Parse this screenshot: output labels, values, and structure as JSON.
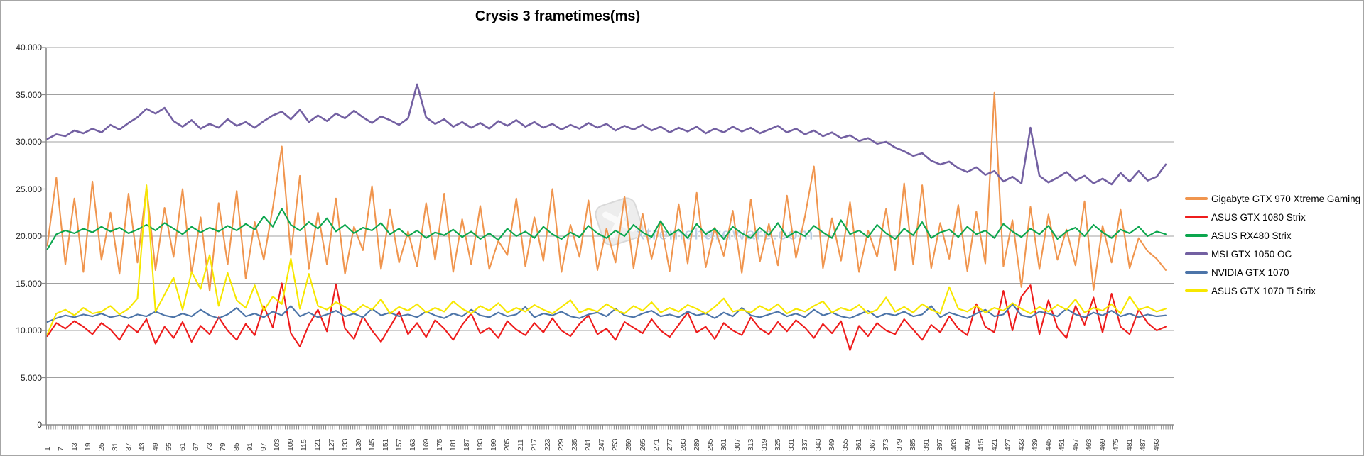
{
  "chart_title": "Crysis 3 frametimes(ms)",
  "watermark": {
    "text": "xtremehardware.com",
    "logo": "excel-x-logo"
  },
  "colors": {
    "background": "#ffffff",
    "frame_border": "#a6a6a6",
    "gridline": "#a0a0a0",
    "axis": "#8a8a8a",
    "tick_label": "#404040",
    "watermark_text": "#b2c8e2",
    "watermark_logo_fill": "#ededed",
    "watermark_logo_stroke": "#d9d9d9"
  },
  "axes": {
    "y_ticks": [
      {
        "label": "0",
        "value": 0
      },
      {
        "label": "5.000",
        "value": 5
      },
      {
        "label": "10.000",
        "value": 10
      },
      {
        "label": "15.000",
        "value": 15
      },
      {
        "label": "20.000",
        "value": 20
      },
      {
        "label": "25.000",
        "value": 25
      },
      {
        "label": "30.000",
        "value": 30
      },
      {
        "label": "35.000",
        "value": 35
      },
      {
        "label": "40.000",
        "value": 40
      }
    ],
    "x_tick_values": [
      1,
      7,
      13,
      19,
      25,
      31,
      37,
      43,
      49,
      55,
      61,
      67,
      73,
      79,
      85,
      91,
      97,
      103,
      109,
      115,
      121,
      127,
      133,
      139,
      145,
      151,
      157,
      163,
      169,
      175,
      181,
      187,
      193,
      199,
      205,
      211,
      217,
      223,
      229,
      235,
      241,
      247,
      253,
      259,
      265,
      271,
      277,
      283,
      289,
      295,
      301,
      307,
      313,
      319,
      325,
      331,
      337,
      343,
      349,
      355,
      361,
      367,
      373,
      379,
      385,
      391,
      397,
      403,
      409,
      415,
      421,
      427,
      433,
      439,
      445,
      451,
      457,
      463,
      469,
      475,
      481,
      487,
      493
    ]
  },
  "chart_data": {
    "type": "line",
    "title": "Crysis 3 frametimes(ms)",
    "xlabel": "",
    "ylabel": "",
    "ylim": [
      0,
      40
    ],
    "y_tick_step": 5,
    "grid": "horizontal",
    "legend_position": "right",
    "x_axis": {
      "unit": "frame index",
      "first_frame": 1,
      "sample_step": 4,
      "tick_start": 1,
      "tick_step": 6,
      "tick_end": 493
    },
    "series": [
      {
        "name": "Gigabyte GTX 970 Xtreme Gaming",
        "color": "#F0954E",
        "values": [
          19.0,
          26.2,
          17.0,
          24.0,
          16.2,
          25.8,
          17.5,
          22.5,
          16.0,
          24.5,
          17.2,
          25.2,
          16.4,
          23.0,
          17.8,
          25.0,
          16.0,
          22.0,
          14.2,
          23.5,
          17.0,
          24.8,
          15.5,
          21.5,
          17.5,
          23.0,
          29.5,
          18.0,
          26.4,
          16.5,
          22.5,
          17.0,
          24.0,
          16.0,
          21.0,
          18.5,
          25.3,
          16.5,
          22.8,
          17.2,
          20.5,
          16.8,
          23.5,
          17.5,
          24.5,
          16.2,
          21.8,
          17.0,
          23.2,
          16.5,
          19.5,
          18.0,
          24.0,
          16.8,
          22.0,
          17.4,
          25.0,
          16.2,
          21.2,
          17.8,
          23.8,
          16.4,
          20.8,
          17.2,
          24.2,
          16.6,
          22.4,
          17.6,
          21.6,
          16.3,
          23.4,
          17.1,
          24.6,
          16.7,
          20.9,
          17.9,
          22.7,
          16.1,
          23.9,
          17.3,
          21.3,
          16.9,
          24.3,
          17.7,
          22.1,
          27.4,
          16.6,
          21.9,
          17.4,
          23.6,
          16.2,
          20.6,
          17.8,
          22.9,
          16.4,
          25.6,
          17.0,
          25.4,
          16.6,
          21.4,
          17.6,
          23.3,
          16.3,
          22.6,
          17.1,
          35.2,
          16.8,
          21.7,
          14.6,
          23.1,
          16.5,
          22.3,
          17.5,
          20.7,
          16.9,
          23.7,
          14.3,
          21.1,
          17.2,
          22.8,
          16.6,
          19.8,
          18.4,
          17.6,
          16.4
        ]
      },
      {
        "name": "ASUS GTX 1080 Strix",
        "color": "#EE1C1C",
        "values": [
          9.4,
          10.8,
          10.2,
          11.0,
          10.4,
          9.6,
          10.8,
          10.1,
          9.0,
          10.6,
          9.8,
          11.2,
          8.6,
          10.4,
          9.2,
          10.9,
          8.8,
          10.5,
          9.6,
          11.4,
          10.0,
          9.0,
          10.7,
          9.5,
          12.6,
          10.3,
          15.0,
          9.7,
          8.3,
          10.6,
          12.2,
          9.9,
          14.9,
          10.2,
          9.1,
          11.5,
          10.0,
          8.8,
          10.4,
          12.0,
          9.6,
          10.8,
          9.3,
          11.1,
          10.2,
          9.0,
          10.6,
          11.8,
          9.7,
          10.3,
          9.2,
          11.0,
          10.1,
          9.5,
          10.8,
          9.8,
          11.3,
          10.0,
          9.4,
          10.7,
          11.6,
          9.6,
          10.2,
          9.0,
          10.9,
          10.3,
          9.7,
          11.2,
          10.0,
          9.3,
          10.6,
          11.9,
          9.8,
          10.4,
          9.1,
          10.8,
          10.0,
          9.5,
          11.4,
          10.2,
          9.6,
          10.9,
          9.9,
          11.1,
          10.3,
          9.2,
          10.7,
          9.7,
          11.0,
          7.9,
          10.5,
          9.4,
          10.8,
          10.0,
          9.6,
          11.2,
          10.1,
          9.0,
          10.6,
          9.8,
          11.5,
          10.2,
          9.5,
          12.8,
          10.4,
          9.8,
          14.2,
          10.0,
          13.6,
          14.8,
          9.6,
          13.2,
          10.3,
          9.2,
          12.6,
          10.6,
          13.5,
          9.8,
          13.9,
          10.4,
          9.6,
          12.2,
          10.8,
          10.0,
          10.4
        ]
      },
      {
        "name": "ASUS RX480 Strix",
        "color": "#0CA64E",
        "values": [
          18.6,
          20.2,
          20.6,
          20.3,
          20.8,
          20.4,
          21.0,
          20.5,
          20.9,
          20.3,
          20.7,
          21.2,
          20.6,
          21.4,
          20.8,
          20.2,
          21.0,
          20.4,
          20.9,
          20.5,
          21.1,
          20.6,
          21.3,
          20.7,
          22.1,
          21.0,
          22.9,
          21.2,
          20.6,
          21.5,
          20.8,
          21.9,
          20.5,
          21.2,
          20.3,
          20.9,
          20.6,
          21.4,
          20.2,
          20.8,
          20.0,
          20.6,
          19.8,
          20.4,
          20.1,
          20.7,
          19.9,
          20.5,
          19.7,
          20.3,
          19.6,
          20.8,
          20.0,
          20.5,
          19.8,
          21.0,
          20.2,
          19.7,
          20.4,
          19.9,
          21.1,
          20.3,
          19.8,
          20.6,
          20.0,
          21.2,
          20.4,
          19.9,
          21.6,
          20.1,
          20.7,
          19.8,
          21.3,
          20.2,
          20.8,
          19.7,
          21.0,
          20.3,
          19.8,
          20.9,
          20.1,
          21.4,
          19.9,
          20.5,
          20.0,
          21.1,
          20.4,
          19.8,
          21.7,
          20.2,
          20.6,
          19.9,
          21.2,
          20.3,
          19.7,
          20.8,
          20.1,
          21.5,
          19.8,
          20.4,
          20.7,
          19.9,
          21.0,
          20.2,
          20.6,
          19.8,
          21.3,
          20.5,
          19.9,
          20.8,
          20.2,
          21.1,
          19.7,
          20.5,
          20.9,
          20.0,
          21.2,
          20.4,
          19.8,
          20.7,
          20.3,
          21.0,
          20.0,
          20.5,
          20.2
        ]
      },
      {
        "name": "MSI GTX 1050 OC",
        "color": "#7360A2",
        "values": [
          30.3,
          30.8,
          30.6,
          31.2,
          30.9,
          31.4,
          31.0,
          31.8,
          31.3,
          32.0,
          32.6,
          33.5,
          33.0,
          33.6,
          32.2,
          31.6,
          32.3,
          31.4,
          31.9,
          31.5,
          32.4,
          31.7,
          32.1,
          31.5,
          32.2,
          32.8,
          33.2,
          32.4,
          33.4,
          32.1,
          32.8,
          32.2,
          33.0,
          32.5,
          33.3,
          32.6,
          32.0,
          32.7,
          32.3,
          31.8,
          32.5,
          36.1,
          32.6,
          31.9,
          32.4,
          31.6,
          32.1,
          31.5,
          32.0,
          31.4,
          32.2,
          31.7,
          32.3,
          31.6,
          32.1,
          31.5,
          31.9,
          31.3,
          31.8,
          31.4,
          32.0,
          31.5,
          31.9,
          31.2,
          31.7,
          31.3,
          31.8,
          31.2,
          31.6,
          31.0,
          31.5,
          31.1,
          31.6,
          30.9,
          31.4,
          31.0,
          31.6,
          31.1,
          31.5,
          30.9,
          31.3,
          31.7,
          31.0,
          31.4,
          30.8,
          31.2,
          30.6,
          31.0,
          30.4,
          30.7,
          30.1,
          30.4,
          29.8,
          30.0,
          29.4,
          29.0,
          28.5,
          28.8,
          28.0,
          27.6,
          27.9,
          27.2,
          26.8,
          27.3,
          26.5,
          26.9,
          25.8,
          26.3,
          25.6,
          31.5,
          26.4,
          25.7,
          26.2,
          26.8,
          25.9,
          26.4,
          25.6,
          26.1,
          25.5,
          26.7,
          25.8,
          26.9,
          25.9,
          26.3,
          27.6
        ]
      },
      {
        "name": "NVIDIA GTX 1070",
        "color": "#4C74A8",
        "values": [
          10.9,
          11.3,
          11.6,
          11.4,
          11.7,
          11.5,
          11.8,
          11.4,
          11.6,
          11.3,
          11.7,
          11.5,
          12.0,
          11.6,
          11.4,
          11.8,
          11.5,
          12.2,
          11.6,
          11.3,
          11.7,
          12.4,
          11.5,
          11.8,
          11.4,
          12.0,
          11.6,
          12.6,
          11.5,
          11.9,
          11.4,
          11.7,
          12.1,
          11.5,
          11.8,
          11.4,
          12.3,
          11.6,
          11.9,
          11.5,
          11.7,
          11.4,
          12.0,
          11.6,
          11.3,
          11.8,
          11.5,
          12.2,
          11.6,
          11.4,
          11.9,
          11.5,
          11.7,
          12.5,
          11.4,
          11.8,
          11.6,
          12.0,
          11.5,
          11.3,
          11.7,
          11.9,
          11.5,
          12.3,
          11.6,
          11.4,
          11.8,
          12.1,
          11.5,
          11.7,
          11.4,
          12.0,
          11.6,
          11.8,
          11.3,
          11.9,
          11.5,
          12.4,
          11.6,
          11.4,
          11.7,
          12.0,
          11.5,
          11.8,
          11.4,
          12.2,
          11.6,
          11.9,
          11.5,
          11.3,
          11.7,
          12.1,
          11.4,
          11.8,
          11.6,
          12.0,
          11.5,
          11.7,
          12.6,
          11.4,
          11.9,
          11.6,
          11.3,
          11.8,
          12.2,
          11.5,
          11.7,
          12.8,
          11.6,
          11.4,
          12.0,
          11.8,
          11.5,
          12.3,
          11.7,
          11.4,
          11.9,
          11.6,
          12.1,
          11.5,
          11.8,
          11.4,
          11.7,
          11.5,
          11.6
        ]
      },
      {
        "name": "ASUS GTX 1070 Ti Strix",
        "color": "#F7E700",
        "values": [
          9.6,
          11.8,
          12.2,
          11.6,
          12.4,
          11.8,
          12.0,
          12.6,
          11.7,
          12.3,
          13.4,
          25.4,
          12.0,
          13.8,
          15.6,
          12.2,
          16.2,
          14.4,
          18.0,
          12.6,
          16.1,
          13.2,
          12.4,
          14.8,
          12.1,
          13.6,
          12.8,
          17.6,
          12.3,
          16.0,
          12.6,
          12.2,
          13.0,
          12.5,
          11.9,
          12.7,
          12.2,
          13.3,
          11.8,
          12.5,
          12.1,
          12.8,
          11.9,
          12.4,
          12.0,
          13.1,
          12.3,
          11.8,
          12.6,
          12.1,
          12.9,
          11.9,
          12.4,
          12.0,
          12.7,
          12.2,
          11.8,
          12.5,
          13.2,
          11.9,
          12.3,
          12.0,
          12.8,
          12.2,
          11.8,
          12.6,
          12.1,
          13.0,
          11.9,
          12.4,
          12.0,
          12.7,
          12.3,
          11.8,
          12.5,
          13.4,
          12.0,
          12.2,
          11.9,
          12.6,
          12.1,
          12.8,
          11.8,
          12.3,
          12.0,
          12.6,
          13.1,
          11.9,
          12.4,
          12.1,
          12.7,
          11.8,
          12.2,
          13.5,
          12.0,
          12.5,
          11.9,
          12.8,
          12.2,
          11.8,
          14.6,
          12.3,
          12.0,
          12.6,
          11.9,
          12.4,
          12.1,
          12.9,
          12.3,
          11.8,
          12.5,
          12.0,
          12.7,
          12.2,
          13.3,
          11.9,
          12.4,
          12.1,
          12.8,
          11.8,
          13.6,
          12.2,
          12.5,
          12.0,
          12.3
        ]
      }
    ]
  }
}
